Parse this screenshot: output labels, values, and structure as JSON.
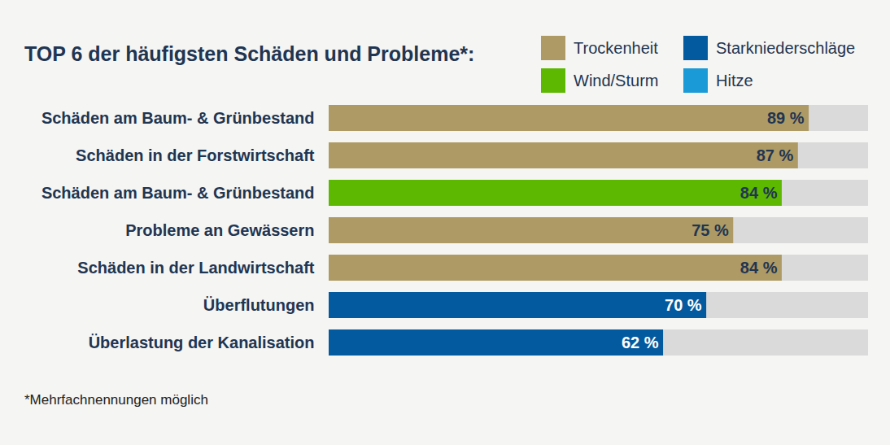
{
  "chart_data": {
    "type": "bar",
    "title": "TOP 6 der häufigsten Schäden und Probleme*:",
    "caption": "*Mehrfachnennungen möglich",
    "orientation": "horizontal",
    "categories": [
      "Schäden am Baum- & Grünbestand",
      "Schäden in der Forstwirtschaft",
      "Schäden am Baum- & Grünbestand",
      "Probleme an Gewässern",
      "Schäden in der Landwirtschaft",
      "Überflutungen",
      "Überlastung der Kanalisation"
    ],
    "series": [
      {
        "name": "Trockenheit",
        "color": "#ae9a64",
        "values": [
          89,
          87,
          null,
          75,
          84,
          null,
          null
        ],
        "value_labels": [
          "89 %",
          "87 %",
          null,
          "75 %",
          "84 %",
          null,
          null
        ]
      },
      {
        "name": "Starkniederschläge",
        "color": "#045a9e",
        "values": [
          null,
          null,
          null,
          null,
          null,
          70,
          62
        ],
        "value_labels": [
          null,
          null,
          null,
          null,
          null,
          "70 %",
          "62 %"
        ]
      },
      {
        "name": "Wind/Sturm",
        "color": "#5cb800",
        "values": [
          null,
          null,
          84,
          null,
          null,
          null,
          null
        ],
        "value_labels": [
          null,
          null,
          "84 %",
          null,
          null,
          null,
          null
        ]
      },
      {
        "name": "Hitze",
        "color": "#1a9ad6",
        "values": [
          null,
          null,
          null,
          null,
          null,
          null,
          null
        ],
        "value_labels": [
          null,
          null,
          null,
          null,
          null,
          null,
          null
        ]
      }
    ],
    "xlim": [
      0,
      100
    ],
    "data_labels": true,
    "tick_labels": "y",
    "legend": "top-right",
    "grid": false
  }
}
